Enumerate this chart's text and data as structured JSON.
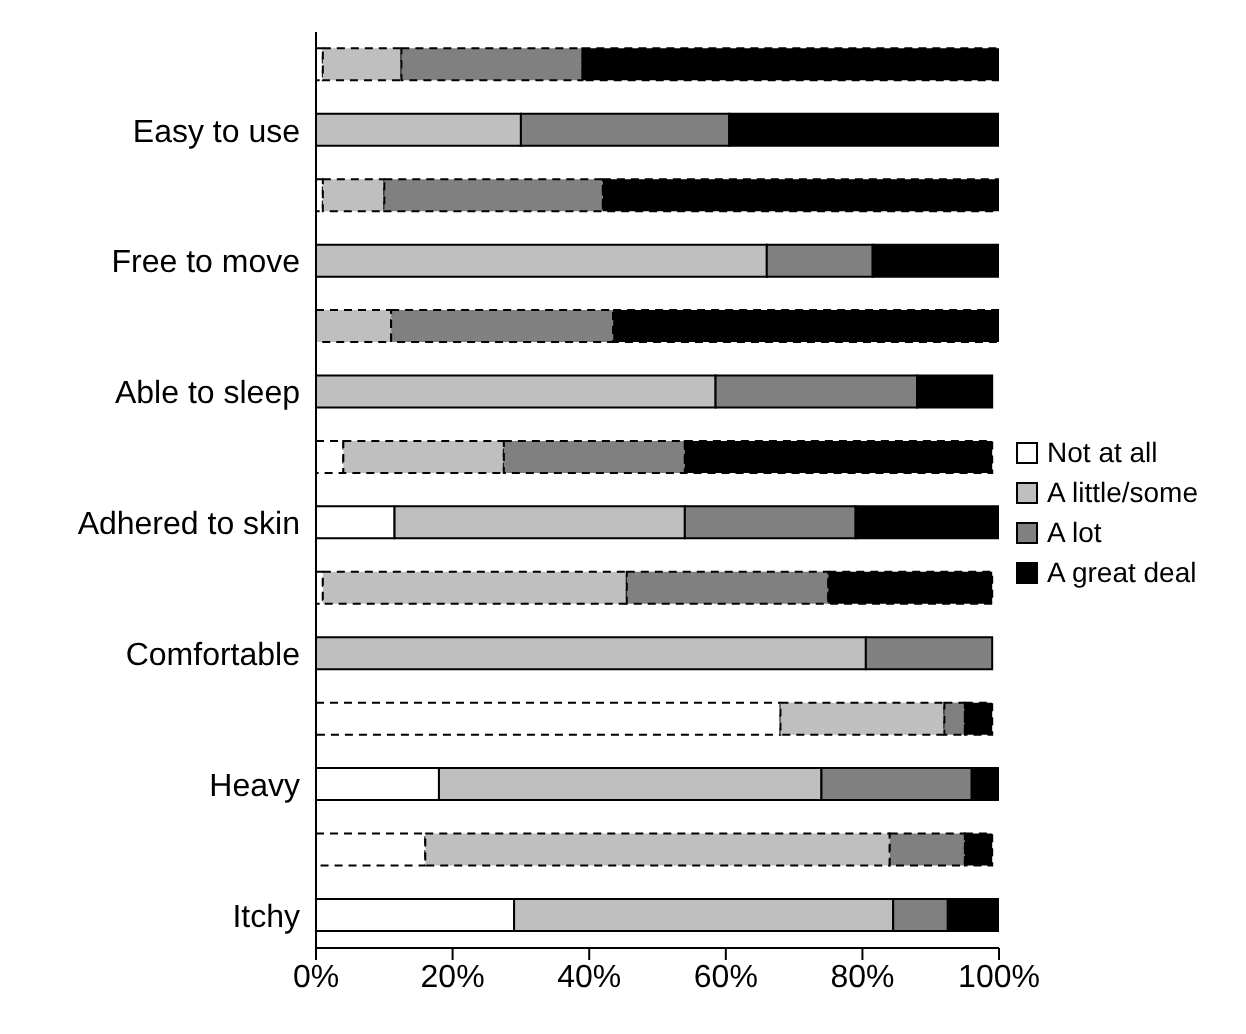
{
  "chart_data": {
    "type": "bar",
    "orientation": "horizontal",
    "stacked": true,
    "categories": [
      null,
      "Easy to use",
      null,
      "Free to move",
      null,
      "Able to sleep",
      null,
      "Adhered to skin",
      null,
      "Comfortable",
      null,
      "Heavy",
      null,
      "Itchy"
    ],
    "series": [
      {
        "color": "#ffffff",
        "line_style": "dashed",
        "values": [
          1,
          null,
          1,
          null,
          0,
          null,
          4,
          null,
          1,
          null,
          68,
          null,
          16,
          null
        ]
      },
      {
        "color": "#bfbfbf",
        "line_style": "dashed",
        "values": [
          11.5,
          null,
          9,
          null,
          11,
          null,
          23.5,
          null,
          44.5,
          null,
          24,
          null,
          68,
          null
        ]
      },
      {
        "color": "#808080",
        "line_style": "dashed",
        "values": [
          26.5,
          null,
          32,
          null,
          32.5,
          null,
          26.5,
          null,
          29.5,
          null,
          3,
          null,
          11,
          null
        ]
      },
      {
        "color": "#000000",
        "line_style": "dashed",
        "values": [
          61,
          null,
          58,
          null,
          56.5,
          null,
          45,
          null,
          24,
          null,
          4,
          null,
          4,
          null
        ]
      },
      {
        "name": "Not at all",
        "color": "#ffffff",
        "line_style": "solid",
        "values": [
          null,
          0,
          null,
          0,
          null,
          0,
          null,
          11.5,
          null,
          0,
          null,
          18,
          null,
          29
        ]
      },
      {
        "name": "A little/some",
        "color": "#bfbfbf",
        "line_style": "solid",
        "values": [
          null,
          30,
          null,
          66,
          null,
          58.5,
          null,
          42.5,
          null,
          80.5,
          null,
          56,
          null,
          55.5
        ]
      },
      {
        "name": "A lot",
        "color": "#808080",
        "line_style": "solid",
        "values": [
          null,
          30.5,
          null,
          15.5,
          null,
          29.5,
          null,
          25,
          null,
          18.5,
          null,
          22,
          null,
          8
        ]
      },
      {
        "name": "A great deal",
        "color": "#000000",
        "line_style": "solid",
        "values": [
          null,
          39.5,
          null,
          18.5,
          null,
          11,
          null,
          21,
          null,
          0,
          null,
          4,
          null,
          7.5
        ]
      }
    ],
    "xlim": [
      0,
      100
    ],
    "xticks": [
      {
        "value": 0,
        "label": "0%"
      },
      {
        "value": 20,
        "label": "20%"
      },
      {
        "value": 40,
        "label": "40%"
      },
      {
        "value": 60,
        "label": "60%"
      },
      {
        "value": 80,
        "label": "80%"
      },
      {
        "value": 100,
        "label": "100%"
      }
    ],
    "legend": "right",
    "grid": false
  }
}
